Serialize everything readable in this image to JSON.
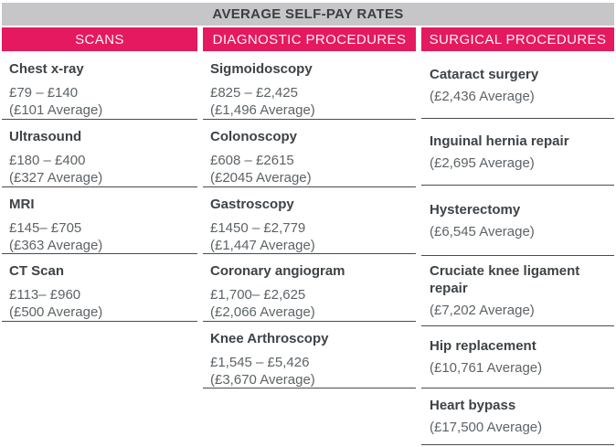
{
  "page_title": "AVERAGE SELF-PAY RATES",
  "colors": {
    "accent_pink": "#E5195F",
    "title_bar_gray": "#C6C6C8",
    "separator_gray": "#4B4B4B",
    "text_dark": "#3E4347",
    "text_muted": "#5D6367"
  },
  "columns": [
    {
      "header": "SCANS",
      "items": [
        {
          "name": "Chest x-ray",
          "range": "£79 – £140",
          "average": "(£101 Average)"
        },
        {
          "name": "Ultrasound",
          "range": "£180 – £400",
          "average": "(£327 Average)"
        },
        {
          "name": "MRI",
          "range": "£145– £705",
          "average": "(£363 Average)"
        },
        {
          "name": "CT Scan",
          "range": "£113– £960",
          "average": "(£500 Average)"
        }
      ]
    },
    {
      "header": "DIAGNOSTIC PROCEDURES",
      "items": [
        {
          "name": "Sigmoidoscopy",
          "range": "£825 – £2,425",
          "average": "(£1,496 Average)"
        },
        {
          "name": "Colonoscopy",
          "range": "£608 – £2615",
          "average": "(£2045 Average)"
        },
        {
          "name": "Gastroscopy",
          "range": "£1450 – £2,779",
          "average": "(£1,447 Average)"
        },
        {
          "name": "Coronary angiogram",
          "range": "£1,700– £2,625",
          "average": "(£2,066 Average)"
        },
        {
          "name": "Knee Arthroscopy",
          "range": "£1,545 – £5,426",
          "average": "(£3,670 Average)"
        }
      ]
    },
    {
      "header": "SURGICAL PROCEDURES",
      "items": [
        {
          "name": "Cataract surgery",
          "average": "(£2,436 Average)"
        },
        {
          "name": "Inguinal hernia repair",
          "average": "(£2,695 Average)"
        },
        {
          "name": "Hysterectomy",
          "average": "(£6,545 Average)"
        },
        {
          "name": "Cruciate knee ligament repair",
          "average": "(£7,202 Average)"
        },
        {
          "name": "Hip replacement",
          "average": "(£10,761 Average)"
        },
        {
          "name": "Heart bypass",
          "average": "(£17,500 Average)"
        }
      ]
    }
  ],
  "chart_data": {
    "type": "table",
    "title": "AVERAGE SELF-PAY RATES",
    "columns": [
      "SCANS",
      "DIAGNOSTIC PROCEDURES",
      "SURGICAL PROCEDURES"
    ],
    "scans": [
      {
        "name": "Chest x-ray",
        "min_gbp": 79,
        "max_gbp": 140,
        "average_gbp": 101
      },
      {
        "name": "Ultrasound",
        "min_gbp": 180,
        "max_gbp": 400,
        "average_gbp": 327
      },
      {
        "name": "MRI",
        "min_gbp": 145,
        "max_gbp": 705,
        "average_gbp": 363
      },
      {
        "name": "CT Scan",
        "min_gbp": 113,
        "max_gbp": 960,
        "average_gbp": 500
      }
    ],
    "diagnostic_procedures": [
      {
        "name": "Sigmoidoscopy",
        "min_gbp": 825,
        "max_gbp": 2425,
        "average_gbp": 1496
      },
      {
        "name": "Colonoscopy",
        "min_gbp": 608,
        "max_gbp": 2615,
        "average_gbp": 2045
      },
      {
        "name": "Gastroscopy",
        "min_gbp": 1450,
        "max_gbp": 2779,
        "average_gbp": 1447
      },
      {
        "name": "Coronary angiogram",
        "min_gbp": 1700,
        "max_gbp": 2625,
        "average_gbp": 2066
      },
      {
        "name": "Knee Arthroscopy",
        "min_gbp": 1545,
        "max_gbp": 5426,
        "average_gbp": 3670
      }
    ],
    "surgical_procedures": [
      {
        "name": "Cataract surgery",
        "average_gbp": 2436
      },
      {
        "name": "Inguinal hernia repair",
        "average_gbp": 2695
      },
      {
        "name": "Hysterectomy",
        "average_gbp": 6545
      },
      {
        "name": "Cruciate knee ligament repair",
        "average_gbp": 7202
      },
      {
        "name": "Hip replacement",
        "average_gbp": 10761
      },
      {
        "name": "Heart bypass",
        "average_gbp": 17500
      }
    ]
  }
}
